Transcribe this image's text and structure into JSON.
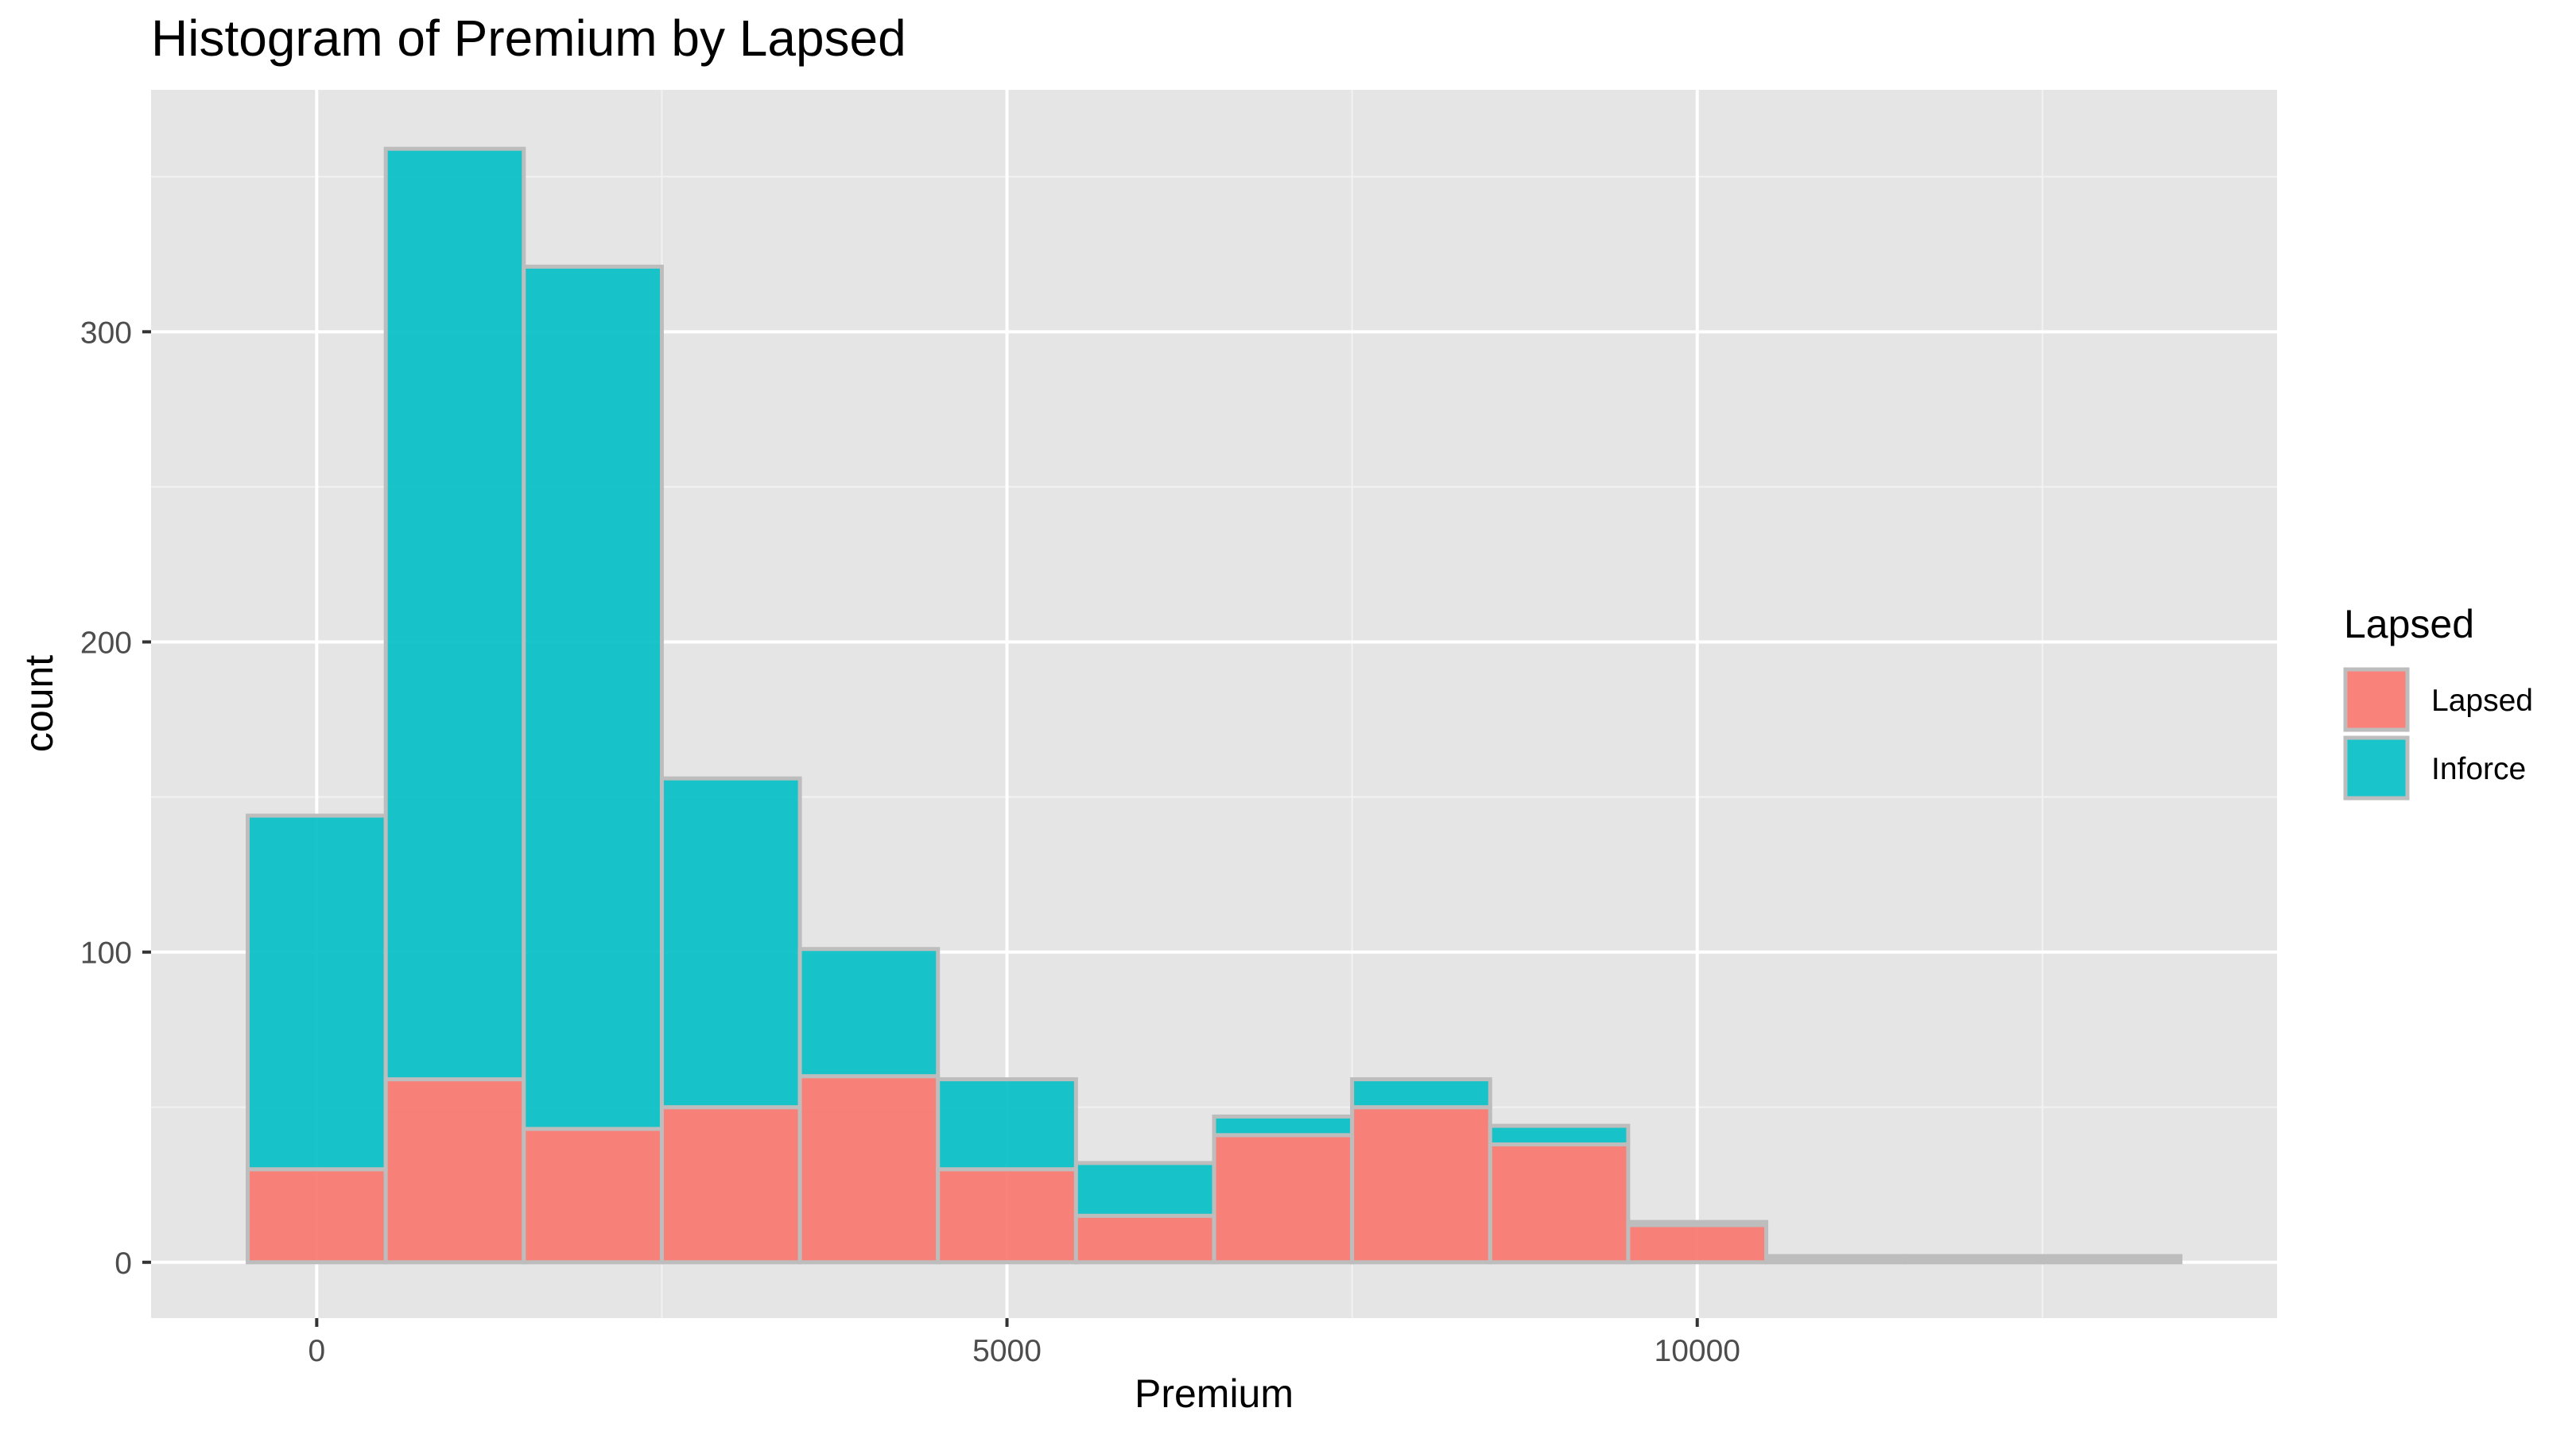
{
  "chart_data": {
    "type": "bar",
    "stacked": true,
    "title": "Histogram of Premium by Lapsed",
    "xlabel": "Premium",
    "ylabel": "count",
    "bin_width": 1000,
    "bin_centers": [
      0,
      1000,
      2000,
      3000,
      4000,
      5000,
      6000,
      7000,
      8000,
      9000,
      10000,
      11000,
      12000,
      13000
    ],
    "series": [
      {
        "name": "Lapsed",
        "color": "#F8766D",
        "values": [
          30,
          59,
          43,
          50,
          60,
          30,
          15,
          41,
          50,
          38,
          12,
          1,
          1,
          1
        ]
      },
      {
        "name": "Inforce",
        "color": "#00BFC4",
        "values": [
          114,
          300,
          278,
          106,
          41,
          29,
          17,
          6,
          9,
          6,
          1,
          1,
          1,
          1
        ]
      }
    ],
    "xlim": [
      -1200,
      14200
    ],
    "ylim": [
      -18,
      378
    ],
    "x_ticks": [
      0,
      5000,
      10000
    ],
    "x_tick_labels": [
      "0",
      "5000",
      "10000"
    ],
    "y_ticks": [
      0,
      100,
      200,
      300
    ],
    "y_tick_labels": [
      "0",
      "100",
      "200",
      "300"
    ],
    "grid": true,
    "legend": {
      "title": "Lapsed",
      "position": "right",
      "entries": [
        "Lapsed",
        "Inforce"
      ]
    },
    "panel_color": "#E5E5E5",
    "bar_outline_color": "#BDBDBD"
  }
}
